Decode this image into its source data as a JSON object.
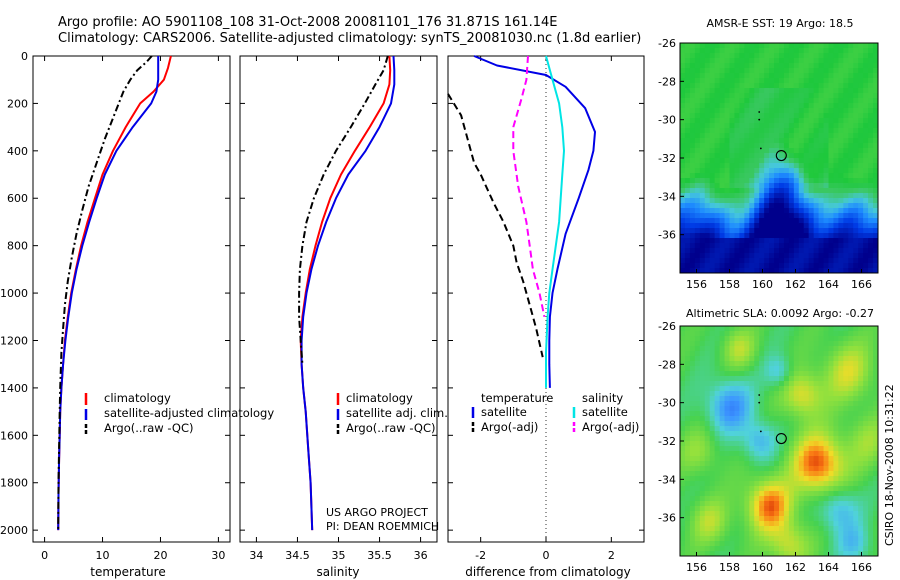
{
  "header": {
    "line1": "Argo profile: AO 5901108_108 31-Oct-2008 20081101_176 31.871S 161.14E",
    "line2": "Climatology: CARS2006. Satellite-adjusted climatology: synTS_20081030.nc (1.8d earlier)"
  },
  "colors": {
    "climatology": "#ff0000",
    "satellite": "#0000e6",
    "argo": "#000000",
    "salinity_satellite": "#00e5e5",
    "salinity_argo": "#ff00ff"
  },
  "side_texts": {
    "project_line1": "US ARGO PROJECT",
    "project_line2": "PI: DEAN ROEMMICH",
    "stamp": "CSIRO 18-Nov-2008 10:31:22"
  },
  "chart_data": [
    {
      "id": "temperature",
      "type": "line",
      "xlabel": "temperature",
      "xlim": [
        -2,
        32
      ],
      "xticks": [
        0,
        10,
        20,
        30
      ],
      "ylim": [
        2050,
        0
      ],
      "yticks": [
        0,
        200,
        400,
        600,
        800,
        1000,
        1200,
        1400,
        1600,
        1800,
        2000
      ],
      "legend": [
        "climatology",
        "satellite-adjusted climatology",
        "Argo(..raw -QC)"
      ],
      "series": [
        {
          "name": "climatology",
          "color": "#ff0000",
          "style": "solid",
          "x": [
            21.8,
            21.3,
            20.6,
            18.8,
            16.5,
            14.0,
            11.8,
            10.0,
            8.7,
            7.4,
            6.3,
            5.4,
            4.6,
            4.0,
            3.5,
            3.2,
            2.9,
            2.7,
            2.6,
            2.5,
            2.4,
            2.35
          ],
          "y": [
            0,
            50,
            100,
            150,
            200,
            300,
            400,
            500,
            600,
            700,
            800,
            900,
            1000,
            1100,
            1200,
            1300,
            1400,
            1500,
            1600,
            1700,
            1850,
            2000
          ]
        },
        {
          "name": "satellite-adjusted climatology",
          "color": "#0000e6",
          "style": "solid",
          "x": [
            19.6,
            19.6,
            19.6,
            19.3,
            18.4,
            15.2,
            12.4,
            10.4,
            9.0,
            7.7,
            6.5,
            5.5,
            4.7,
            4.1,
            3.6,
            3.2,
            2.9,
            2.7,
            2.6,
            2.5,
            2.4,
            2.35
          ],
          "y": [
            0,
            50,
            100,
            150,
            200,
            300,
            400,
            500,
            600,
            700,
            800,
            900,
            1000,
            1100,
            1200,
            1300,
            1400,
            1500,
            1600,
            1700,
            1850,
            2000
          ]
        },
        {
          "name": "Argo(..raw -QC)",
          "color": "#000000",
          "style": "dashdot",
          "x": [
            18.5,
            17.6,
            16.0,
            14.8,
            13.6,
            12.0,
            10.4,
            9.0,
            7.6,
            6.5,
            5.5,
            4.7,
            4.0,
            3.5,
            3.2,
            2.9,
            2.7,
            2.6,
            2.5,
            2.4,
            2.35
          ],
          "y": [
            0,
            25,
            60,
            100,
            150,
            250,
            350,
            450,
            550,
            650,
            750,
            850,
            950,
            1050,
            1150,
            1250,
            1400,
            1500,
            1650,
            1800,
            2000
          ]
        }
      ]
    },
    {
      "id": "salinity",
      "type": "line",
      "xlabel": "salinity",
      "xlim": [
        33.8,
        36.2
      ],
      "xticks": [
        34,
        34.5,
        35,
        35.5,
        36
      ],
      "ylim": [
        2050,
        0
      ],
      "legend": [
        "climatology",
        "satellite adj. clim.",
        "Argo(..raw -QC)"
      ],
      "series": [
        {
          "name": "climatology",
          "color": "#ff0000",
          "style": "solid",
          "x": [
            35.62,
            35.63,
            35.62,
            35.55,
            35.38,
            35.2,
            35.03,
            34.9,
            34.8,
            34.72,
            34.65,
            34.6,
            34.56,
            34.54,
            34.55,
            34.57,
            34.6,
            34.63,
            34.66,
            34.68
          ],
          "y": [
            0,
            60,
            120,
            200,
            300,
            400,
            500,
            600,
            700,
            800,
            900,
            1000,
            1100,
            1200,
            1300,
            1400,
            1500,
            1650,
            1800,
            2000
          ]
        },
        {
          "name": "satellite adj. clim.",
          "color": "#0000e6",
          "style": "solid",
          "x": [
            35.67,
            35.68,
            35.68,
            35.64,
            35.5,
            35.33,
            35.12,
            34.97,
            34.85,
            34.75,
            34.67,
            34.61,
            34.57,
            34.55,
            34.55,
            34.57,
            34.6,
            34.63,
            34.66,
            34.68
          ],
          "y": [
            0,
            60,
            120,
            200,
            300,
            400,
            500,
            600,
            700,
            800,
            900,
            1000,
            1100,
            1200,
            1300,
            1400,
            1500,
            1650,
            1800,
            2000
          ]
        },
        {
          "name": "Argo(..raw -QC)",
          "color": "#000000",
          "style": "dashdot",
          "x": [
            35.6,
            35.55,
            35.45,
            35.32,
            35.15,
            34.97,
            34.82,
            34.7,
            34.61,
            34.56,
            34.53,
            34.52,
            34.52,
            34.54,
            34.56
          ],
          "y": [
            0,
            60,
            120,
            200,
            300,
            400,
            500,
            600,
            700,
            800,
            900,
            1000,
            1100,
            1200,
            1300
          ]
        }
      ]
    },
    {
      "id": "difference",
      "type": "line",
      "xlabel": "difference from climatology",
      "xlim": [
        -3,
        3
      ],
      "xticks": [
        -2,
        0,
        2
      ],
      "ylim": [
        2050,
        0
      ],
      "legend_headers": [
        "temperature",
        "salinity"
      ],
      "legend": [
        "satellite",
        "Argo(-adj)",
        "satellite",
        "Argo(-adj)"
      ],
      "series": [
        {
          "name": "temperature satellite",
          "color": "#0000e6",
          "style": "solid",
          "x": [
            -2.2,
            -1.5,
            0.0,
            0.6,
            1.2,
            1.5,
            1.45,
            1.3,
            1.0,
            0.6,
            0.35,
            0.2,
            0.12,
            0.1,
            0.1,
            0.12
          ],
          "y": [
            0,
            40,
            80,
            130,
            220,
            320,
            400,
            480,
            600,
            750,
            900,
            1000,
            1100,
            1200,
            1300,
            1400
          ]
        },
        {
          "name": "temperature Argo(-adj)",
          "color": "#000000",
          "style": "dash",
          "x": [
            -3.0,
            -2.6,
            -2.4,
            -2.2,
            -2.0,
            -1.8,
            -1.6,
            -1.3,
            -1.0,
            -0.9,
            -0.7,
            -0.5,
            -0.3,
            -0.1
          ],
          "y": [
            160,
            250,
            350,
            450,
            500,
            560,
            620,
            700,
            800,
            870,
            950,
            1050,
            1150,
            1270
          ]
        },
        {
          "name": "salinity satellite",
          "color": "#00e5e5",
          "style": "solid",
          "x": [
            0.0,
            0.2,
            0.4,
            0.5,
            0.55,
            0.5,
            0.4,
            0.3,
            0.2,
            0.1,
            0.05,
            0.0,
            0.0
          ],
          "y": [
            0,
            100,
            200,
            300,
            400,
            500,
            700,
            800,
            900,
            1000,
            1100,
            1250,
            1400
          ]
        },
        {
          "name": "salinity Argo(-adj)",
          "color": "#ff00ff",
          "style": "dash",
          "x": [
            -0.55,
            -0.6,
            -0.75,
            -1.0,
            -1.0,
            -0.85,
            -0.6,
            -0.5,
            -0.4,
            -0.2,
            -0.05
          ],
          "y": [
            0,
            100,
            180,
            300,
            400,
            550,
            700,
            800,
            900,
            1000,
            1100
          ]
        }
      ]
    },
    {
      "id": "sst_map",
      "type": "heatmap",
      "title": "AMSR-E SST: 19 Argo: 18.5",
      "xlim": [
        155,
        167
      ],
      "ylim": [
        -38,
        -26
      ],
      "xticks": [
        156,
        158,
        160,
        162,
        164,
        166
      ],
      "yticks": [
        -26,
        -28,
        -30,
        -32,
        -34,
        -36
      ],
      "marker": {
        "lon": 161.14,
        "lat": -31.871
      }
    },
    {
      "id": "sla_map",
      "type": "heatmap",
      "title": "Altimetric SLA: 0.0092 Argo: -0.27",
      "xlim": [
        155,
        167
      ],
      "ylim": [
        -38,
        -26
      ],
      "xticks": [
        156,
        158,
        160,
        162,
        164,
        166
      ],
      "yticks": [
        -26,
        -28,
        -30,
        -32,
        -34,
        -36
      ],
      "marker": {
        "lon": 161.14,
        "lat": -31.871
      }
    }
  ]
}
